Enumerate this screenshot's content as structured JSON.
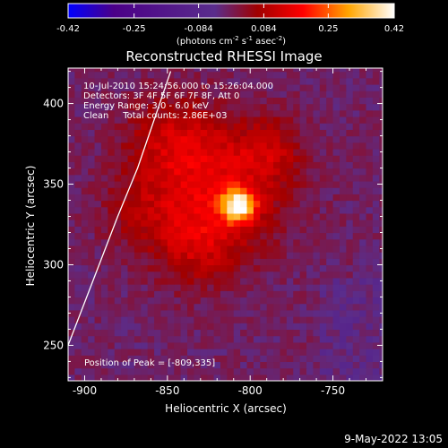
{
  "chart_data": {
    "type": "heatmap",
    "title": "Reconstructed RHESSI Image",
    "xlabel": "Heliocentric X (arcsec)",
    "ylabel": "Heliocentric Y (arcsec)",
    "xlim": [
      -910,
      -720
    ],
    "ylim": [
      228,
      422
    ],
    "x_ticks": [
      -900,
      -850,
      -800,
      -750
    ],
    "x_tick_labels": [
      "-900",
      "-850",
      "-800",
      "-750"
    ],
    "y_ticks": [
      250,
      300,
      350,
      400
    ],
    "y_tick_labels": [
      "250",
      "300",
      "350",
      "400"
    ],
    "colorbar": {
      "min": -0.42,
      "max": 0.42,
      "ticks": [
        -0.42,
        -0.25,
        -0.084,
        0.084,
        0.25,
        0.42
      ],
      "tick_labels": [
        "-0.42",
        "-0.25",
        "-0.084",
        "0.084",
        "0.25",
        "0.42"
      ],
      "unit_label": {
        "prefix": "(photons cm",
        "sup1": "-2",
        "mid1": " s",
        "sup2": "-1",
        "mid2": " asec",
        "sup3": "-2",
        "suffix": ")"
      },
      "colormap": [
        "#0000ff",
        "#4b0088",
        "#5a2d8c",
        "#a00000",
        "#ff0000",
        "#ffa500",
        "#ffffff"
      ]
    },
    "annotations": [
      "10-Jul-2010 15:24:56.000 to 15:26:04.000",
      "Detectors: 3F 4F 5F 6F 7F 8F, Att 0",
      "Energy Range: 3.0 - 6.0 keV",
      "Clean     Total counts: 2.86E+03"
    ],
    "peak_label": "Position of Peak = [-809,335]",
    "peak": {
      "x": -809,
      "y": 335,
      "value": 0.42
    },
    "limb": [
      [
        -910,
        250
      ],
      [
        -895,
        290
      ],
      [
        -880,
        330
      ],
      [
        -868,
        360
      ],
      [
        -858,
        390
      ],
      [
        -848,
        420
      ]
    ],
    "footer": "9-May-2022 13:05"
  }
}
